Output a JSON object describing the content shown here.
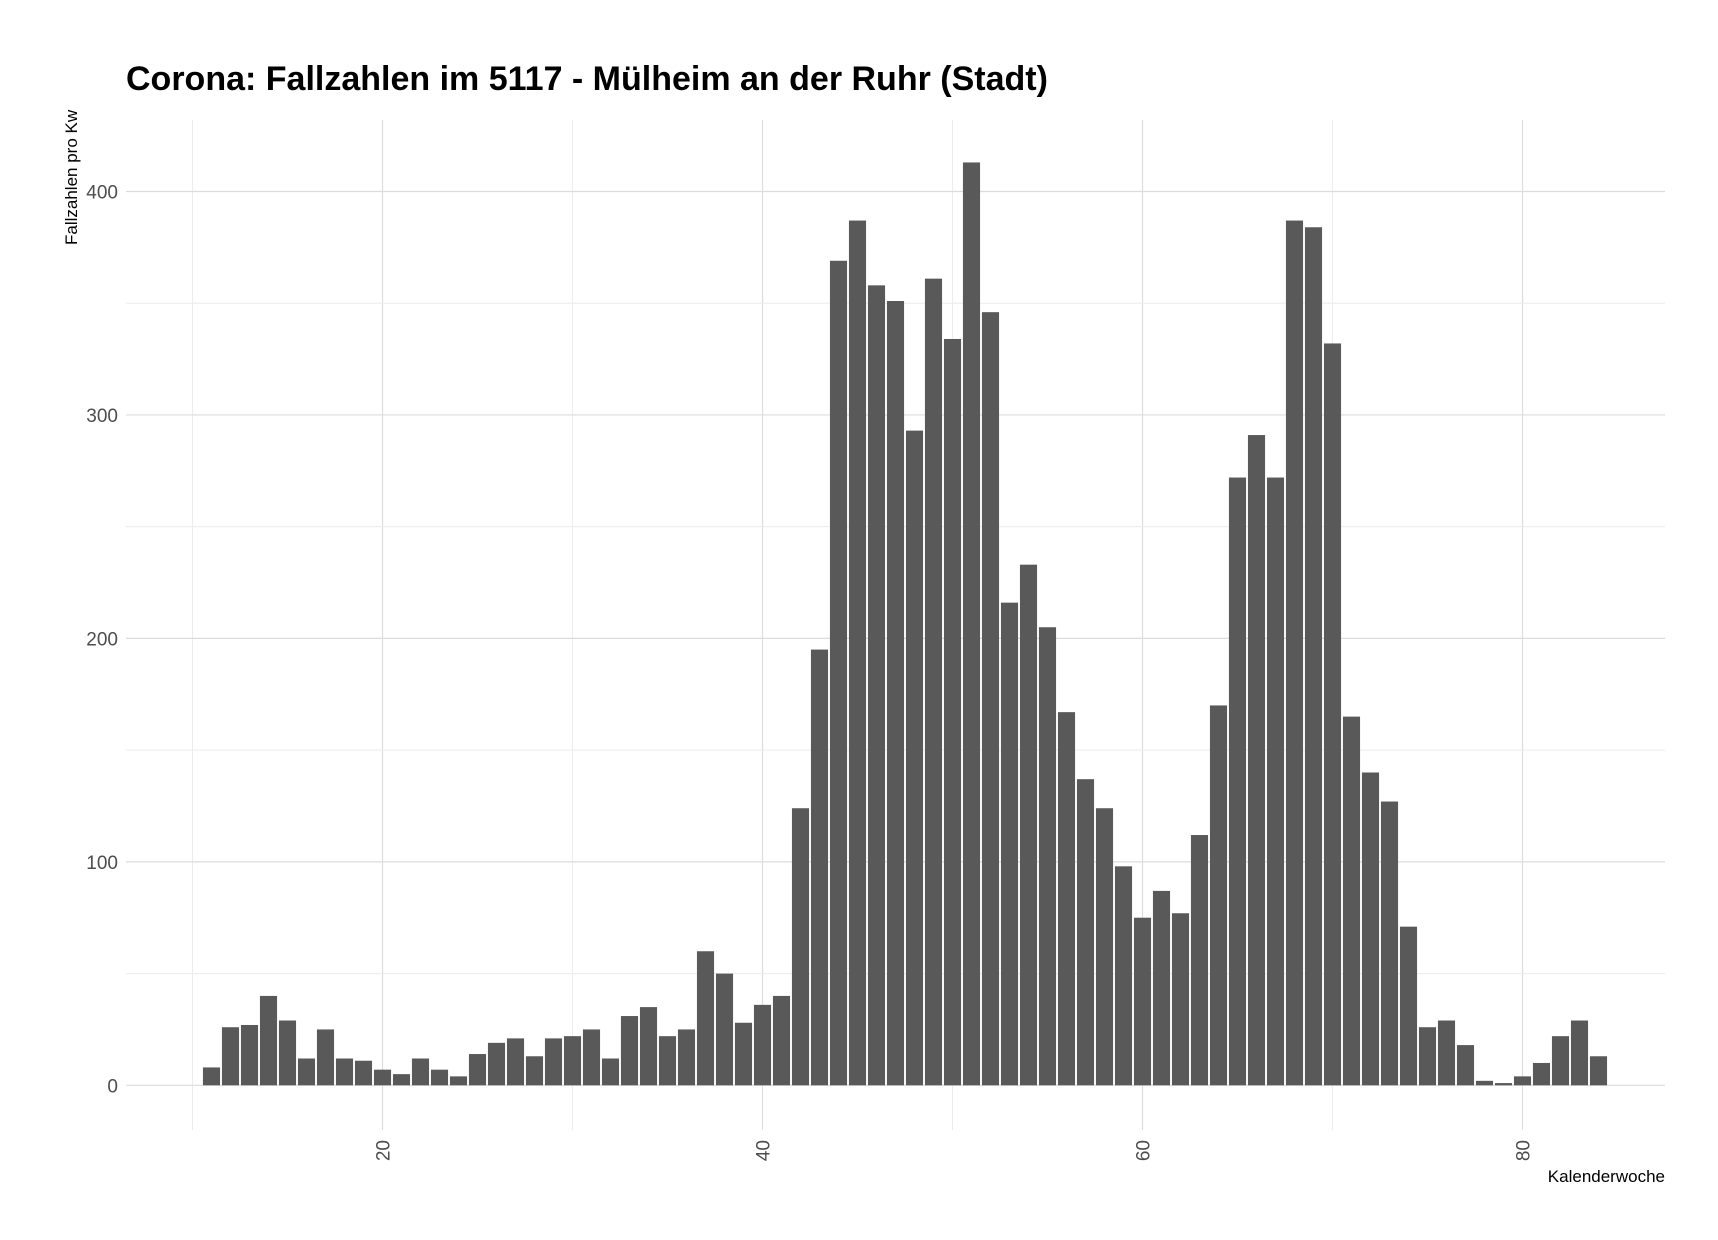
{
  "chart_data": {
    "type": "bar",
    "title": "Corona: Fallzahlen im 5117 - Mülheim an der Ruhr (Stadt)",
    "xlabel": "Kalenderwoche",
    "ylabel": "Fallzahlen pro Kw",
    "xlim": [
      6.5,
      87.5
    ],
    "ylim": [
      -20,
      432
    ],
    "x_ticks": [
      20,
      40,
      60,
      80
    ],
    "y_ticks": [
      0,
      100,
      200,
      300,
      400
    ],
    "grid": true,
    "bar_color": "#595959",
    "x": [
      11,
      12,
      13,
      14,
      15,
      16,
      17,
      18,
      19,
      20,
      21,
      22,
      23,
      24,
      25,
      26,
      27,
      28,
      29,
      30,
      31,
      32,
      33,
      34,
      35,
      36,
      37,
      38,
      39,
      40,
      41,
      42,
      43,
      44,
      45,
      46,
      47,
      48,
      49,
      50,
      51,
      52,
      53,
      54,
      55,
      56,
      57,
      58,
      59,
      60,
      61,
      62,
      63,
      64,
      65,
      66,
      67,
      68,
      69,
      70,
      71,
      72,
      73,
      74,
      75,
      76,
      77,
      78,
      79,
      80,
      81,
      82,
      83,
      84
    ],
    "values": [
      8,
      26,
      27,
      40,
      29,
      12,
      25,
      12,
      11,
      7,
      5,
      12,
      7,
      4,
      14,
      19,
      21,
      13,
      21,
      22,
      25,
      12,
      31,
      35,
      22,
      25,
      60,
      50,
      28,
      36,
      40,
      124,
      195,
      369,
      387,
      358,
      351,
      293,
      361,
      334,
      413,
      346,
      216,
      233,
      205,
      167,
      137,
      124,
      98,
      75,
      87,
      77,
      112,
      170,
      272,
      291,
      272,
      387,
      384,
      332,
      165,
      140,
      127,
      71,
      26,
      29,
      18,
      2,
      1,
      4,
      10,
      22,
      29,
      13
    ]
  }
}
